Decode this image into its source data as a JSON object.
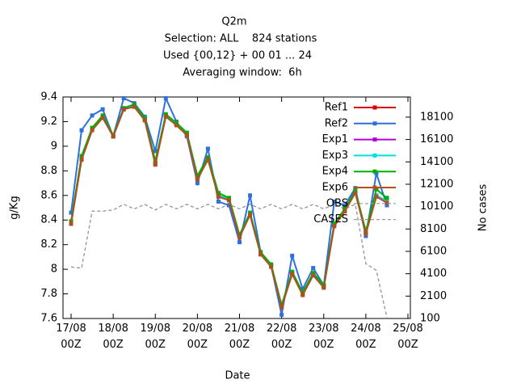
{
  "chart_data": {
    "type": "line",
    "title": [
      "Q2m",
      "Selection: ALL    824 stations",
      "Used {00,12} + 00 01 ... 24",
      "Averaging window:  6h"
    ],
    "xlabel": "Date",
    "ylabel": "g/Kg",
    "y2label": "No cases",
    "x": [
      0,
      6,
      12,
      18,
      24,
      30,
      36,
      42,
      48,
      54,
      60,
      66,
      72,
      78,
      84,
      90,
      96,
      102,
      108,
      114,
      120,
      126,
      132,
      138,
      144,
      150,
      156,
      162,
      168,
      174,
      180
    ],
    "xlim": [
      0,
      192
    ],
    "xticks": [
      {
        "value": 0,
        "label": "17/08\n00Z"
      },
      {
        "value": 24,
        "label": "18/08\n00Z"
      },
      {
        "value": 48,
        "label": "19/08\n00Z"
      },
      {
        "value": 72,
        "label": "20/08\n00Z"
      },
      {
        "value": 96,
        "label": "21/08\n00Z"
      },
      {
        "value": 120,
        "label": "22/08\n00Z"
      },
      {
        "value": 144,
        "label": "23/08\n00Z"
      },
      {
        "value": 168,
        "label": "24/08\n00Z"
      },
      {
        "value": 192,
        "label": "25/08\n00Z"
      }
    ],
    "ylim": [
      7.6,
      9.4
    ],
    "yticks": [
      7.6,
      7.8,
      {
        "value": 8,
        "label": "8"
      },
      8.2,
      8.4,
      8.6,
      8.8,
      {
        "value": 9,
        "label": "9"
      },
      9.2,
      9.4
    ],
    "y2lim": [
      100,
      19900
    ],
    "y2ticks": [
      100,
      2100,
      4100,
      6100,
      8100,
      10100,
      12100,
      14100,
      16100,
      18100
    ],
    "legend": "top-right",
    "series": [
      {
        "name": "Ref1",
        "color": "#dd0000",
        "values": [
          8.37,
          8.9,
          9.14,
          9.24,
          9.08,
          9.3,
          9.33,
          9.22,
          8.86,
          9.25,
          9.18,
          9.09,
          8.74,
          8.9,
          8.6,
          8.57,
          8.27,
          8.45,
          8.13,
          8.03,
          7.7,
          7.97,
          7.8,
          7.96,
          7.86,
          8.36,
          8.48,
          8.63,
          8.3,
          8.6,
          8.55
        ]
      },
      {
        "name": "Ref2",
        "color": "#2f6fe0",
        "values": [
          8.46,
          9.13,
          9.25,
          9.3,
          9.08,
          9.39,
          9.35,
          9.24,
          8.96,
          9.39,
          9.2,
          9.08,
          8.7,
          8.98,
          8.55,
          8.52,
          8.22,
          8.6,
          8.14,
          8.03,
          7.63,
          8.11,
          7.84,
          8.01,
          7.87,
          8.55,
          8.52,
          8.66,
          8.27,
          8.78,
          8.52
        ]
      },
      {
        "name": "Exp1",
        "color": "#b000e0",
        "values": [
          8.37,
          8.9,
          9.14,
          9.24,
          9.08,
          9.3,
          9.33,
          9.22,
          8.86,
          9.25,
          9.18,
          9.09,
          8.74,
          8.9,
          8.6,
          8.57,
          8.27,
          8.45,
          8.13,
          8.03,
          7.7,
          7.97,
          7.8,
          7.96,
          7.86,
          8.36,
          8.48,
          8.63,
          8.3,
          8.6,
          8.55
        ]
      },
      {
        "name": "Exp3",
        "color": "#00e0e0",
        "values": [
          8.37,
          8.9,
          9.14,
          9.24,
          9.08,
          9.3,
          9.33,
          9.22,
          8.86,
          9.25,
          9.18,
          9.09,
          8.74,
          8.9,
          8.6,
          8.57,
          8.27,
          8.45,
          8.13,
          8.03,
          7.7,
          7.97,
          7.8,
          7.96,
          7.86,
          8.36,
          8.48,
          8.63,
          8.3,
          8.6,
          8.55
        ]
      },
      {
        "name": "Exp4",
        "color": "#00b000",
        "values": [
          8.39,
          8.92,
          9.15,
          9.25,
          9.09,
          9.31,
          9.34,
          9.23,
          8.88,
          9.26,
          9.19,
          9.11,
          8.76,
          8.91,
          8.62,
          8.58,
          8.28,
          8.46,
          8.14,
          8.04,
          7.71,
          7.98,
          7.81,
          7.97,
          7.87,
          8.37,
          8.49,
          8.64,
          8.31,
          8.65,
          8.58
        ]
      },
      {
        "name": "Exp6",
        "color": "#b05020",
        "values": [
          8.37,
          8.89,
          9.13,
          9.23,
          9.08,
          9.3,
          9.32,
          9.21,
          8.85,
          9.24,
          9.17,
          9.09,
          8.73,
          8.89,
          8.59,
          8.56,
          8.26,
          8.44,
          8.12,
          8.02,
          7.69,
          7.96,
          7.79,
          7.95,
          7.85,
          8.35,
          8.47,
          8.62,
          8.29,
          8.59,
          8.54
        ]
      },
      {
        "name": "OBS",
        "color": "#999999",
        "style": "dashed",
        "axis": "y2",
        "values": [
          4700,
          4600,
          9700,
          9700,
          9800,
          10300,
          9900,
          10300,
          9800,
          10300,
          9900,
          10300,
          9900,
          10300,
          9900,
          10300,
          9900,
          10300,
          9900,
          10300,
          9900,
          10300,
          9900,
          10300,
          9900,
          10300,
          9900,
          10300,
          5000,
          4400,
          200
        ]
      },
      {
        "name": "CASES",
        "color": "#999999",
        "style": "dashed",
        "axis": "y2",
        "values": [
          4700,
          4600,
          9700,
          9700,
          9800,
          10300,
          9900,
          10300,
          9800,
          10300,
          9900,
          10300,
          9900,
          10300,
          9900,
          10300,
          9900,
          10300,
          9900,
          10300,
          9900,
          10300,
          9900,
          10300,
          9900,
          10300,
          9900,
          10300,
          5000,
          4400,
          200
        ]
      }
    ]
  }
}
